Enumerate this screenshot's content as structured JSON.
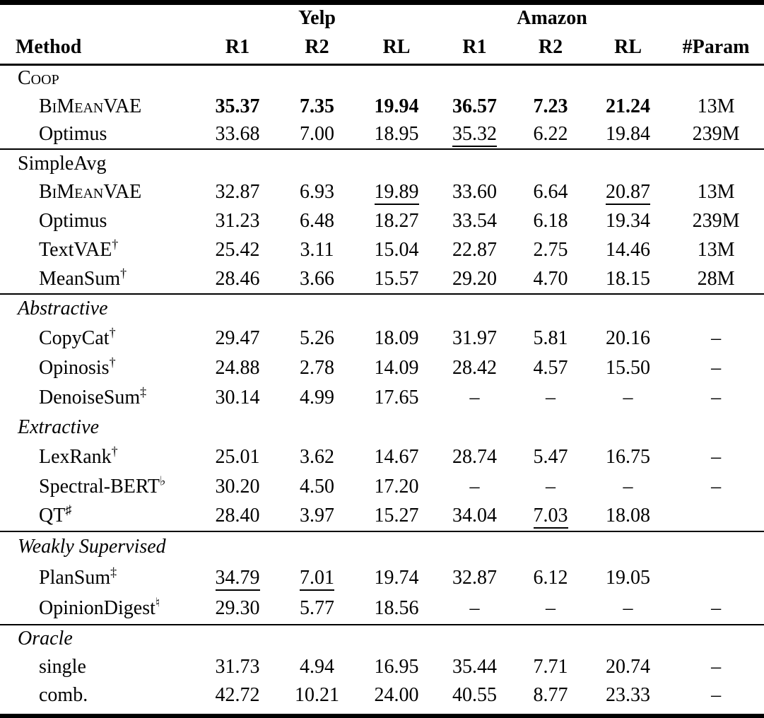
{
  "table": {
    "group_headers": [
      {
        "label": "Yelp"
      },
      {
        "label": "Amazon"
      }
    ],
    "columns": [
      "Method",
      "R1",
      "R2",
      "RL",
      "R1",
      "R2",
      "RL",
      "#Param"
    ],
    "blocks": [
      {
        "groups": [
          {
            "header": {
              "t": "Coop",
              "style": "sc"
            },
            "rows": [
              {
                "method": {
                  "t": "BiMeanVAE",
                  "sc": true
                },
                "cells": [
                  {
                    "t": "35.37",
                    "b": true
                  },
                  {
                    "t": "7.35",
                    "b": true
                  },
                  {
                    "t": "19.94",
                    "b": true
                  },
                  {
                    "t": "36.57",
                    "b": true
                  },
                  {
                    "t": "7.23",
                    "b": true
                  },
                  {
                    "t": "21.24",
                    "b": true
                  }
                ],
                "param": "13M"
              },
              {
                "method": {
                  "t": "Optimus"
                },
                "cells": [
                  {
                    "t": "33.68"
                  },
                  {
                    "t": "7.00"
                  },
                  {
                    "t": "18.95"
                  },
                  {
                    "t": "35.32",
                    "u": true
                  },
                  {
                    "t": "6.22"
                  },
                  {
                    "t": "19.84"
                  }
                ],
                "param": "239M"
              }
            ]
          }
        ]
      },
      {
        "groups": [
          {
            "header": {
              "t": "SimpleAvg",
              "style": "plain"
            },
            "rows": [
              {
                "method": {
                  "t": "BiMeanVAE",
                  "sc": true
                },
                "cells": [
                  {
                    "t": "32.87"
                  },
                  {
                    "t": "6.93"
                  },
                  {
                    "t": "19.89",
                    "u": true
                  },
                  {
                    "t": "33.60"
                  },
                  {
                    "t": "6.64"
                  },
                  {
                    "t": "20.87",
                    "u": true
                  }
                ],
                "param": "13M"
              },
              {
                "method": {
                  "t": "Optimus"
                },
                "cells": [
                  {
                    "t": "31.23"
                  },
                  {
                    "t": "6.48"
                  },
                  {
                    "t": "18.27"
                  },
                  {
                    "t": "33.54"
                  },
                  {
                    "t": "6.18"
                  },
                  {
                    "t": "19.34"
                  }
                ],
                "param": "239M"
              },
              {
                "method": {
                  "t": "TextVAE",
                  "sup": "†"
                },
                "cells": [
                  {
                    "t": "25.42"
                  },
                  {
                    "t": "3.11"
                  },
                  {
                    "t": "15.04"
                  },
                  {
                    "t": "22.87"
                  },
                  {
                    "t": "2.75"
                  },
                  {
                    "t": "14.46"
                  }
                ],
                "param": "13M"
              },
              {
                "method": {
                  "t": "MeanSum",
                  "sup": "†"
                },
                "cells": [
                  {
                    "t": "28.46"
                  },
                  {
                    "t": "3.66"
                  },
                  {
                    "t": "15.57"
                  },
                  {
                    "t": "29.20"
                  },
                  {
                    "t": "4.70"
                  },
                  {
                    "t": "18.15"
                  }
                ],
                "param": "28M"
              }
            ]
          }
        ]
      },
      {
        "groups": [
          {
            "header": {
              "t": "Abstractive",
              "style": "it"
            },
            "rows": [
              {
                "method": {
                  "t": "CopyCat",
                  "sup": "†"
                },
                "cells": [
                  {
                    "t": "29.47"
                  },
                  {
                    "t": "5.26"
                  },
                  {
                    "t": "18.09"
                  },
                  {
                    "t": "31.97"
                  },
                  {
                    "t": "5.81"
                  },
                  {
                    "t": "20.16"
                  }
                ],
                "param": "–"
              },
              {
                "method": {
                  "t": "Opinosis",
                  "sup": "†"
                },
                "cells": [
                  {
                    "t": "24.88"
                  },
                  {
                    "t": "2.78"
                  },
                  {
                    "t": "14.09"
                  },
                  {
                    "t": "28.42"
                  },
                  {
                    "t": "4.57"
                  },
                  {
                    "t": "15.50"
                  }
                ],
                "param": "–"
              },
              {
                "method": {
                  "t": "DenoiseSum",
                  "sup": "‡"
                },
                "cells": [
                  {
                    "t": "30.14"
                  },
                  {
                    "t": "4.99"
                  },
                  {
                    "t": "17.65"
                  },
                  {
                    "t": "–"
                  },
                  {
                    "t": "–"
                  },
                  {
                    "t": "–"
                  }
                ],
                "param": "–"
              }
            ]
          },
          {
            "header": {
              "t": "Extractive",
              "style": "it"
            },
            "rows": [
              {
                "method": {
                  "t": "LexRank",
                  "sup": "†"
                },
                "cells": [
                  {
                    "t": "25.01"
                  },
                  {
                    "t": "3.62"
                  },
                  {
                    "t": "14.67"
                  },
                  {
                    "t": "28.74"
                  },
                  {
                    "t": "5.47"
                  },
                  {
                    "t": "16.75"
                  }
                ],
                "param": "–"
              },
              {
                "method": {
                  "t": "Spectral-BERT",
                  "sup": "♭"
                },
                "cells": [
                  {
                    "t": "30.20"
                  },
                  {
                    "t": "4.50"
                  },
                  {
                    "t": "17.20"
                  },
                  {
                    "t": "–"
                  },
                  {
                    "t": "–"
                  },
                  {
                    "t": "–"
                  }
                ],
                "param": "–"
              },
              {
                "method": {
                  "t": "QT",
                  "sup": "♯"
                },
                "cells": [
                  {
                    "t": "28.40"
                  },
                  {
                    "t": "3.97"
                  },
                  {
                    "t": "15.27"
                  },
                  {
                    "t": "34.04"
                  },
                  {
                    "t": "7.03",
                    "u": true
                  },
                  {
                    "t": "18.08"
                  }
                ],
                "param": ""
              }
            ]
          }
        ]
      },
      {
        "groups": [
          {
            "header": {
              "t": "Weakly Supervised",
              "style": "it"
            },
            "rows": [
              {
                "method": {
                  "t": "PlanSum",
                  "sup": "‡"
                },
                "cells": [
                  {
                    "t": "34.79",
                    "u": true
                  },
                  {
                    "t": "7.01",
                    "u": true
                  },
                  {
                    "t": "19.74"
                  },
                  {
                    "t": "32.87"
                  },
                  {
                    "t": "6.12"
                  },
                  {
                    "t": "19.05"
                  }
                ],
                "param": ""
              },
              {
                "method": {
                  "t": "OpinionDigest",
                  "sup": "♮"
                },
                "cells": [
                  {
                    "t": "29.30"
                  },
                  {
                    "t": "5.77"
                  },
                  {
                    "t": "18.56"
                  },
                  {
                    "t": "–"
                  },
                  {
                    "t": "–"
                  },
                  {
                    "t": "–"
                  }
                ],
                "param": "–"
              }
            ]
          }
        ]
      },
      {
        "groups": [
          {
            "header": {
              "t": "Oracle",
              "style": "it"
            },
            "rows": [
              {
                "method": {
                  "t": "single"
                },
                "cells": [
                  {
                    "t": "31.73"
                  },
                  {
                    "t": "4.94"
                  },
                  {
                    "t": "16.95"
                  },
                  {
                    "t": "35.44"
                  },
                  {
                    "t": "7.71"
                  },
                  {
                    "t": "20.74"
                  }
                ],
                "param": "–"
              },
              {
                "method": {
                  "t": "comb."
                },
                "cells": [
                  {
                    "t": "42.72"
                  },
                  {
                    "t": "10.21"
                  },
                  {
                    "t": "24.00"
                  },
                  {
                    "t": "40.55"
                  },
                  {
                    "t": "8.77"
                  },
                  {
                    "t": "23.33"
                  }
                ],
                "param": "–"
              }
            ]
          }
        ]
      }
    ]
  }
}
